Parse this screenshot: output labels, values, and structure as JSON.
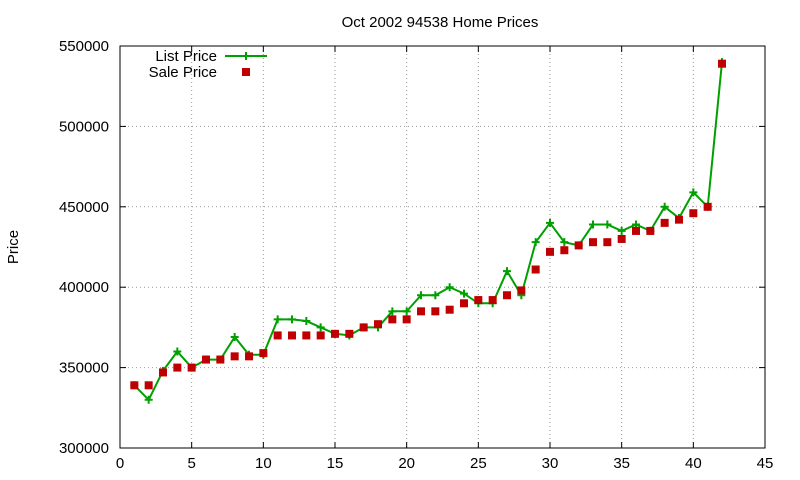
{
  "chart_data": {
    "type": "line",
    "title": "Oct 2002 94538 Home Prices",
    "xlabel": "",
    "ylabel": "Price",
    "xlim": [
      0,
      45
    ],
    "ylim": [
      300000,
      550000
    ],
    "xticks": [
      0,
      5,
      10,
      15,
      20,
      25,
      30,
      35,
      40,
      45
    ],
    "yticks": [
      300000,
      350000,
      400000,
      450000,
      500000,
      550000
    ],
    "grid": true,
    "legend_position": "top-left",
    "series": [
      {
        "name": "List Price",
        "style": "line+plus",
        "color": "#00a000",
        "x": [
          1,
          2,
          3,
          4,
          5,
          6,
          7,
          8,
          9,
          10,
          11,
          12,
          13,
          14,
          15,
          16,
          17,
          18,
          19,
          20,
          21,
          22,
          23,
          24,
          25,
          26,
          27,
          28,
          29,
          30,
          31,
          32,
          33,
          34,
          35,
          36,
          37,
          38,
          39,
          40,
          41,
          42
        ],
        "y": [
          339000,
          330000,
          348000,
          360000,
          350000,
          355000,
          355000,
          369000,
          358000,
          358000,
          380000,
          380000,
          379000,
          375000,
          371000,
          370000,
          375000,
          375000,
          385000,
          385000,
          395000,
          395000,
          400000,
          396000,
          390000,
          390000,
          410000,
          395000,
          428000,
          440000,
          428000,
          426000,
          439000,
          439000,
          435000,
          439000,
          435000,
          450000,
          443000,
          459000,
          450000,
          540000
        ]
      },
      {
        "name": "Sale Price",
        "style": "square",
        "color": "#c00000",
        "x": [
          1,
          2,
          3,
          4,
          5,
          6,
          7,
          8,
          9,
          10,
          11,
          12,
          13,
          14,
          15,
          16,
          17,
          18,
          19,
          20,
          21,
          22,
          23,
          24,
          25,
          26,
          27,
          28,
          29,
          30,
          31,
          32,
          33,
          34,
          35,
          36,
          37,
          38,
          39,
          40,
          41,
          42
        ],
        "y": [
          339000,
          339000,
          347000,
          350000,
          350000,
          355000,
          355000,
          357000,
          357000,
          359000,
          370000,
          370000,
          370000,
          370000,
          371000,
          371000,
          375000,
          377000,
          380000,
          380000,
          385000,
          385000,
          386000,
          390000,
          392000,
          392000,
          395000,
          398000,
          411000,
          422000,
          423000,
          426000,
          428000,
          428000,
          430000,
          435000,
          435000,
          440000,
          442000,
          446000,
          450000,
          539000
        ]
      }
    ]
  }
}
